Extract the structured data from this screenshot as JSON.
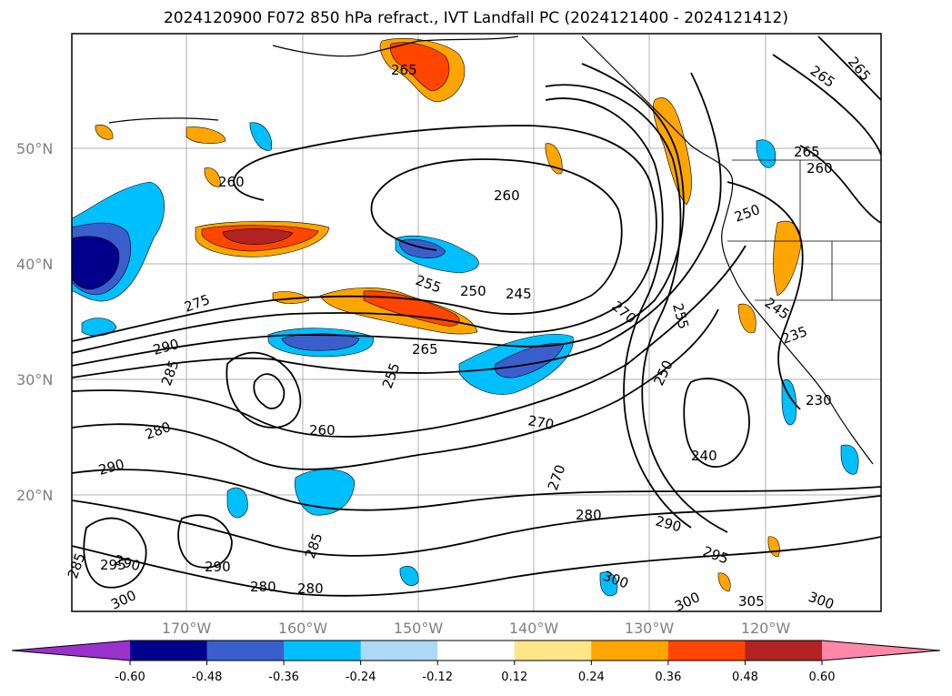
{
  "title": "2024120900 F072 850 hPa refract., IVT Landfall PC (2024121400 - 2024121412)",
  "latitude_labels": [
    "50°N",
    "40°N",
    "30°N",
    "20°N"
  ],
  "longitude_labels": [
    "170°W",
    "160°W",
    "150°W",
    "140°W",
    "130°W",
    "120°W"
  ],
  "contour_labels": [
    "265",
    "265",
    "265",
    "265",
    "260",
    "260",
    "250",
    "260",
    "255",
    "250",
    "245",
    "275",
    "270",
    "255",
    "245",
    "235",
    "290",
    "285",
    "265",
    "255",
    "250",
    "230",
    "260",
    "270",
    "280",
    "240",
    "270",
    "290",
    "280",
    "290",
    "295",
    "285",
    "290",
    "280",
    "280",
    "300",
    "300",
    "305",
    "300",
    "285",
    "290",
    "295",
    "300"
  ],
  "colorbar": {
    "ticks": [
      "-0.60",
      "-0.48",
      "-0.36",
      "-0.24",
      "-0.12",
      "0.12",
      "0.24",
      "0.36",
      "0.48",
      "0.60"
    ],
    "colors": [
      "#9932cc",
      "#00008b",
      "#3a5fcd",
      "#00bfff",
      "#add8f6",
      "#ffffff",
      "#fde68a",
      "#ffa500",
      "#ff4500",
      "#b22222",
      "#ff88aa"
    ]
  }
}
